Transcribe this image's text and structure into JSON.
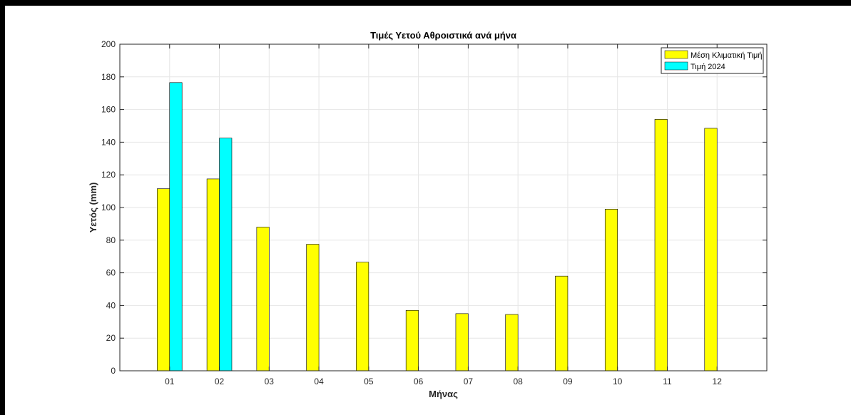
{
  "chart_data": {
    "type": "bar",
    "title": "Τιμές Υετού Αθροιστικά ανά μήνα",
    "xlabel": "Μήνας",
    "ylabel": "Υετός (mm)",
    "ylim": [
      0,
      200
    ],
    "yticks": [
      0,
      20,
      40,
      60,
      80,
      100,
      120,
      140,
      160,
      180,
      200
    ],
    "grid": true,
    "legend_position": "top-right",
    "categories": [
      "01",
      "02",
      "03",
      "04",
      "05",
      "06",
      "07",
      "08",
      "09",
      "10",
      "11",
      "12"
    ],
    "series": [
      {
        "name": "Μέση Κλιματική Τιμή",
        "color": "#ffff00",
        "values": [
          111.5,
          117.5,
          88,
          77.5,
          66.5,
          37,
          35,
          34.5,
          58,
          99,
          154,
          148.5
        ]
      },
      {
        "name": "Τιμή 2024",
        "color": "#00ffff",
        "values": [
          176.5,
          142.5,
          null,
          null,
          null,
          null,
          null,
          null,
          null,
          null,
          null,
          null
        ]
      }
    ]
  }
}
